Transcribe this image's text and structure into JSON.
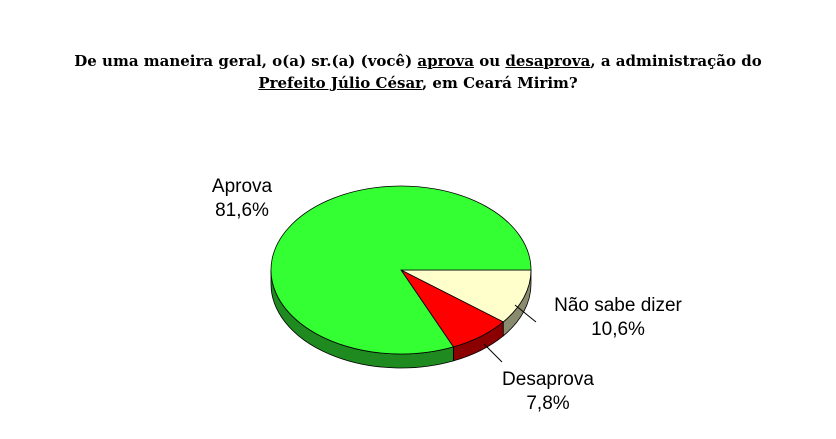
{
  "chart_data": {
    "type": "pie",
    "title": {
      "line1_prefix": "De uma maneira geral, o(a) sr.(a) (você) ",
      "line1_u1": "aprova",
      "line1_mid": " ou ",
      "line1_u2": "desaprova",
      "line1_suffix": ", a administração do",
      "line2_u": "Prefeito Júlio César",
      "line2_suffix": ", em Ceará Mirim?"
    },
    "slices": [
      {
        "label": "Aprova",
        "value": 81.6,
        "value_label": "81,6%",
        "color": "#33ff33",
        "side_color": "#1f8a1f"
      },
      {
        "label": "Desaprova",
        "value": 7.8,
        "value_label": "7,8%",
        "color": "#ff0000",
        "side_color": "#8b0000"
      },
      {
        "label": "Não sabe dizer",
        "value": 10.6,
        "value_label": "10,6%",
        "color": "#ffffcc",
        "side_color": "#8a8a6e"
      }
    ]
  }
}
